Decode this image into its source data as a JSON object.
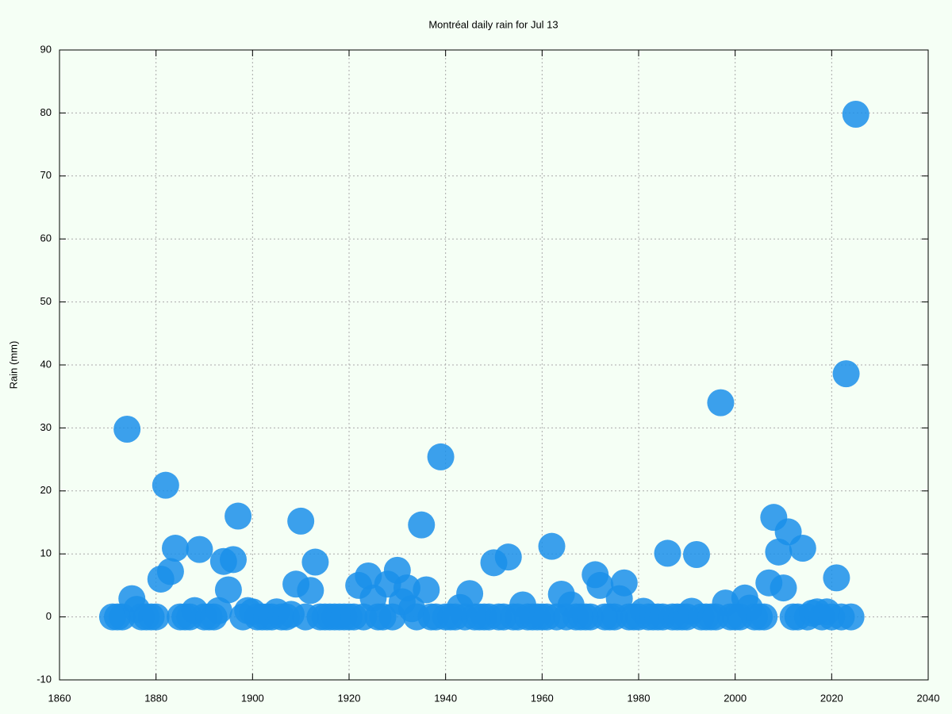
{
  "chart_data": {
    "type": "scatter",
    "title": "Montréal daily rain for Jul 13",
    "y_label": "Rain (mm)",
    "x": [
      1871,
      1872,
      1873,
      1874,
      1875,
      1876,
      1877,
      1878,
      1879,
      1880,
      1881,
      1882,
      1883,
      1884,
      1885,
      1886,
      1887,
      1888,
      1889,
      1890,
      1891,
      1892,
      1893,
      1894,
      1895,
      1896,
      1897,
      1898,
      1899,
      1900,
      1901,
      1902,
      1903,
      1904,
      1905,
      1906,
      1907,
      1908,
      1909,
      1910,
      1911,
      1912,
      1913,
      1914,
      1915,
      1916,
      1917,
      1918,
      1919,
      1920,
      1921,
      1922,
      1923,
      1924,
      1925,
      1926,
      1927,
      1928,
      1929,
      1930,
      1931,
      1932,
      1933,
      1934,
      1935,
      1936,
      1937,
      1938,
      1939,
      1940,
      1941,
      1942,
      1943,
      1944,
      1945,
      1946,
      1947,
      1948,
      1949,
      1950,
      1951,
      1952,
      1953,
      1954,
      1955,
      1956,
      1957,
      1958,
      1959,
      1960,
      1961,
      1962,
      1963,
      1964,
      1965,
      1966,
      1967,
      1968,
      1969,
      1970,
      1971,
      1972,
      1973,
      1974,
      1975,
      1976,
      1977,
      1978,
      1979,
      1980,
      1981,
      1982,
      1983,
      1984,
      1985,
      1986,
      1987,
      1988,
      1989,
      1990,
      1991,
      1992,
      1993,
      1994,
      1995,
      1996,
      1997,
      1998,
      1999,
      2000,
      2001,
      2002,
      2003,
      2004,
      2005,
      2006,
      2007,
      2008,
      2009,
      2010,
      2011,
      2012,
      2013,
      2014,
      2015,
      2016,
      2017,
      2018,
      2019,
      2020,
      2021,
      2022,
      2023,
      2024,
      2025
    ],
    "values": [
      0,
      0,
      0,
      29.8,
      2.9,
      1.2,
      0,
      0,
      0,
      0,
      6.0,
      20.9,
      7.2,
      10.9,
      0,
      0,
      0,
      1,
      10.7,
      0,
      0,
      0,
      1,
      8.8,
      4.3,
      9.1,
      16,
      0,
      1,
      0.8,
      0,
      0,
      0,
      0,
      0.8,
      0,
      0,
      0.4,
      5.2,
      15.2,
      0,
      4.2,
      8.7,
      0,
      0,
      0,
      0,
      0,
      0,
      0,
      0,
      5.0,
      0,
      6.5,
      3,
      0,
      0,
      5.2,
      0,
      7.4,
      2.4,
      4.6,
      1.3,
      0,
      14.6,
      4.3,
      0,
      0,
      25.4,
      0,
      0,
      0,
      1.5,
      0,
      3.7,
      0,
      0,
      0,
      0,
      8.6,
      0,
      0,
      9.5,
      0,
      0,
      1.9,
      0,
      0,
      0,
      0,
      0,
      11.2,
      0,
      3.6,
      0,
      1.9,
      0,
      0,
      0,
      0,
      6.7,
      5.0,
      0,
      0,
      0,
      2.9,
      5.4,
      0,
      0,
      0,
      0.9,
      0,
      0,
      0,
      0,
      10.1,
      0,
      0,
      0,
      0,
      0.9,
      9.9,
      0,
      0,
      0,
      0,
      34,
      2.2,
      0,
      0,
      0,
      3,
      1.4,
      0,
      0,
      0,
      5.4,
      15.8,
      10.3,
      4.6,
      13.5,
      0,
      0,
      10.9,
      0,
      0.6,
      0.8,
      0,
      0.8,
      0,
      6.2,
      0,
      38.6,
      0,
      79.8
    ],
    "color": "#1a8fea",
    "xlim": [
      1860,
      2040
    ],
    "xticks": [
      1860,
      1880,
      1900,
      1920,
      1940,
      1960,
      1980,
      2000,
      2020,
      2040
    ],
    "ylim": [
      -10,
      90
    ],
    "yticks": [
      -10,
      0,
      10,
      20,
      30,
      40,
      50,
      60,
      70,
      80,
      90
    ],
    "grid": true
  }
}
